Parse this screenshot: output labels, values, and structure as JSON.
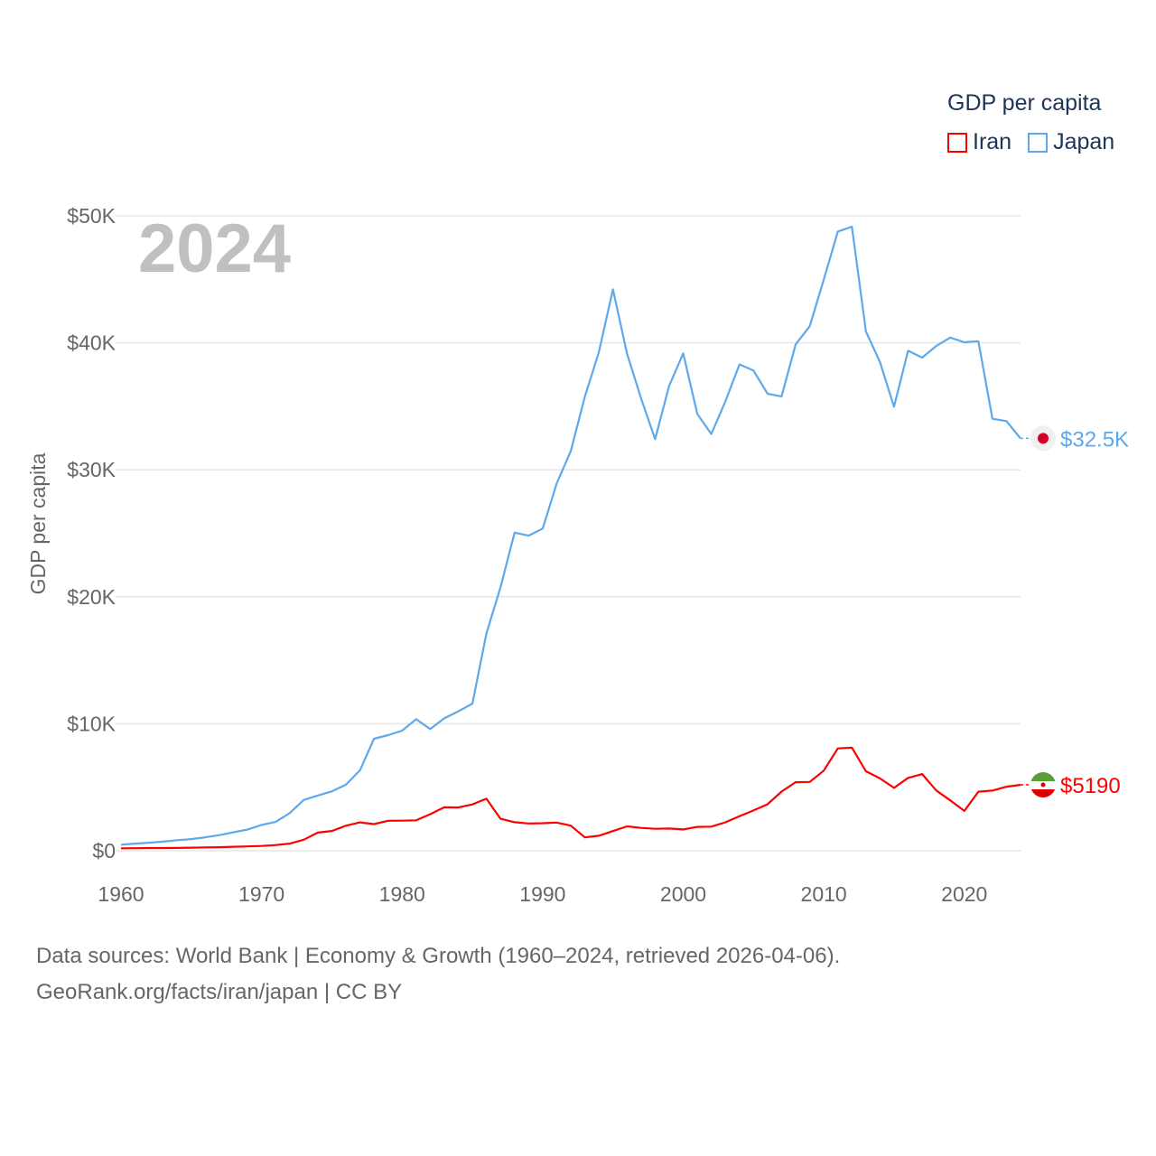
{
  "chart_data": {
    "type": "line",
    "title": "GDP per capita",
    "ylabel": "GDP per capita",
    "xlabel": "",
    "year_overlay": "2024",
    "xlim": [
      1960,
      2024
    ],
    "ylim": [
      0,
      50000
    ],
    "x_ticks": [
      "1960",
      "1970",
      "1980",
      "1990",
      "2000",
      "2010",
      "2020"
    ],
    "x_tick_values": [
      1960,
      1970,
      1980,
      1990,
      2000,
      2010,
      2020
    ],
    "y_ticks": [
      "$0",
      "$10K",
      "$20K",
      "$30K",
      "$40K",
      "$50K"
    ],
    "y_tick_values": [
      0,
      10000,
      20000,
      30000,
      40000,
      50000
    ],
    "grid": true,
    "legend_placement": "top-right",
    "x": [
      1960,
      1961,
      1962,
      1963,
      1964,
      1965,
      1966,
      1967,
      1968,
      1969,
      1970,
      1971,
      1972,
      1973,
      1974,
      1975,
      1976,
      1977,
      1978,
      1979,
      1980,
      1981,
      1982,
      1983,
      1984,
      1985,
      1986,
      1987,
      1988,
      1989,
      1990,
      1991,
      1992,
      1993,
      1994,
      1995,
      1996,
      1997,
      1998,
      1999,
      2000,
      2001,
      2002,
      2003,
      2004,
      2005,
      2006,
      2007,
      2008,
      2009,
      2010,
      2011,
      2012,
      2013,
      2014,
      2015,
      2016,
      2017,
      2018,
      2019,
      2020,
      2021,
      2022,
      2023,
      2024
    ],
    "series": [
      {
        "name": "Iran",
        "color": "#ff0000",
        "end_label": "$5190",
        "flag": "iran-flag",
        "values": [
          190,
          200,
          210,
          215,
          220,
          240,
          260,
          280,
          310,
          340,
          380,
          450,
          560,
          870,
          1430,
          1560,
          1970,
          2230,
          2100,
          2360,
          2370,
          2400,
          2880,
          3420,
          3410,
          3650,
          4100,
          2520,
          2250,
          2150,
          2170,
          2220,
          1980,
          1050,
          1180,
          1550,
          1920,
          1800,
          1730,
          1750,
          1680,
          1880,
          1900,
          2240,
          2720,
          3170,
          3660,
          4660,
          5400,
          5420,
          6310,
          8060,
          8120,
          6260,
          5700,
          4950,
          5740,
          6040,
          4750,
          3960,
          3140,
          4650,
          4740,
          5040,
          5190
        ]
      },
      {
        "name": "Japan",
        "color": "#5ea8ec",
        "end_label": "$32.5K",
        "flag": "japan-flag",
        "values": [
          479,
          564,
          634,
          718,
          835,
          920,
          1059,
          1229,
          1451,
          1669,
          2037,
          2272,
          2967,
          3998,
          4354,
          4674,
          5197,
          6335,
          8821,
          9105,
          9463,
          10361,
          9578,
          10425,
          10984,
          11585,
          17112,
          20745,
          25051,
          24813,
          25371,
          28925,
          31465,
          35766,
          39269,
          44210,
          39150,
          35635,
          32420,
          36610,
          39169,
          34406,
          32820,
          35390,
          38300,
          37820,
          35990,
          35780,
          39880,
          41310,
          44970,
          48760,
          49145,
          40898,
          38475,
          34961,
          39375,
          38834,
          39751,
          40416,
          40040,
          40130,
          34017,
          33834,
          32476
        ]
      }
    ]
  },
  "legend": {
    "title": "GDP per capita",
    "items": [
      "Iran",
      "Japan"
    ]
  },
  "footer": {
    "line1": "Data sources: World Bank | Economy & Growth (1960–2024, retrieved 2026-04-06).",
    "line2": "GeoRank.org/facts/iran/japan | CC BY"
  }
}
